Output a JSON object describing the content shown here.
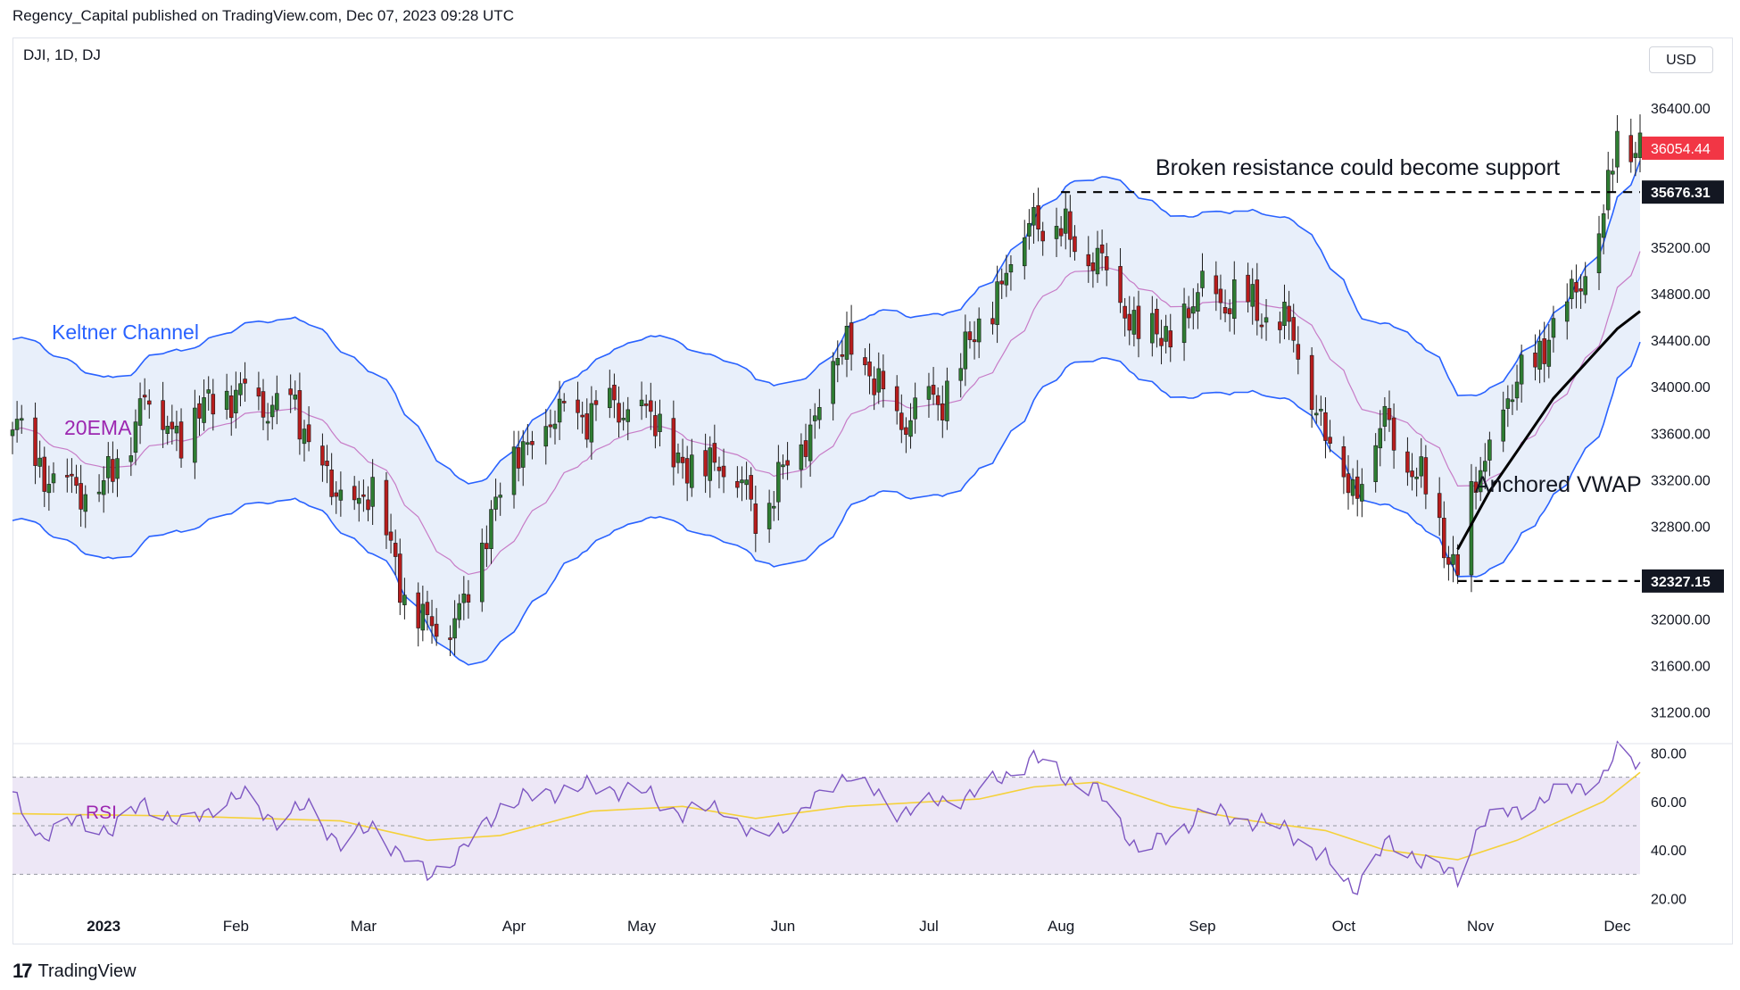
{
  "header": {
    "published": "Regency_Capital published on TradingView.com, Dec 07, 2023 09:28 UTC",
    "symbol": "DJI, 1D, DJ",
    "currency": "USD"
  },
  "footer": {
    "brand": "TradingView",
    "logo_icon": "tradingview-logo-icon"
  },
  "colors": {
    "up": "#26a69a",
    "down": "#ef5350",
    "candle_up": "#2e7d32",
    "candle_down": "#b71c1c",
    "keltner": "#2962ff",
    "keltner_fill": "#e8effa",
    "ema": "#c77cc7",
    "vwap": "#000000",
    "rsi": "#7e57c2",
    "rsi_ma": "#f5d13a",
    "rsi_band": "#ede7f6",
    "price_tag": "#f23645"
  },
  "chart_data": [
    {
      "type": "candlestick",
      "title": "DJI, 1D, DJ",
      "y_axis": {
        "ylim": [
          30950,
          36700
        ],
        "ticks": [
          31200,
          31600,
          32000,
          32400,
          32800,
          33200,
          33600,
          34000,
          34400,
          34800,
          35200,
          35600,
          36000,
          36400
        ],
        "tick_labels": [
          "31200.00",
          "31600.00",
          "32000.00",
          "",
          "32800.00",
          "33200.00",
          "33600.00",
          "34000.00",
          "34400.00",
          "34800.00",
          "35200.00",
          "",
          "",
          "36400.00"
        ]
      },
      "x_axis": {
        "labels": [
          "2023",
          "Feb",
          "Mar",
          "Apr",
          "May",
          "Jun",
          "Jul",
          "Aug",
          "Sep",
          "Oct",
          "Nov",
          "Dec"
        ],
        "label_dates": [
          "2023-01-03",
          "2023-02-01",
          "2023-03-01",
          "2023-04-03",
          "2023-05-01",
          "2023-06-01",
          "2023-07-03",
          "2023-08-01",
          "2023-09-01",
          "2023-10-02",
          "2023-11-01",
          "2023-12-01"
        ],
        "date_range": [
          "2022-12-14",
          "2023-12-06"
        ]
      },
      "price_series": [
        [
          "2022-12-14",
          33700
        ],
        [
          "2022-12-22",
          33200
        ],
        [
          "2023-01-03",
          33100
        ],
        [
          "2023-01-12",
          33900
        ],
        [
          "2023-01-20",
          33600
        ],
        [
          "2023-01-27",
          33900
        ],
        [
          "2023-02-03",
          33900
        ],
        [
          "2023-02-14",
          33800
        ],
        [
          "2023-02-23",
          33000
        ],
        [
          "2023-03-03",
          33100
        ],
        [
          "2023-03-10",
          32250
        ],
        [
          "2023-03-15",
          31900
        ],
        [
          "2023-03-23",
          32100
        ],
        [
          "2023-03-31",
          33200
        ],
        [
          "2023-04-11",
          33700
        ],
        [
          "2023-04-20",
          33800
        ],
        [
          "2023-05-01",
          33800
        ],
        [
          "2023-05-11",
          33300
        ],
        [
          "2023-05-19",
          33400
        ],
        [
          "2023-05-26",
          32900
        ],
        [
          "2023-06-05",
          33500
        ],
        [
          "2023-06-15",
          34400
        ],
        [
          "2023-06-26",
          33700
        ],
        [
          "2023-07-06",
          33900
        ],
        [
          "2023-07-14",
          34500
        ],
        [
          "2023-07-26",
          35500
        ],
        [
          "2023-08-02",
          35300
        ],
        [
          "2023-08-09",
          35100
        ],
        [
          "2023-08-18",
          34500
        ],
        [
          "2023-08-25",
          34400
        ],
        [
          "2023-09-01",
          34800
        ],
        [
          "2023-09-12",
          34700
        ],
        [
          "2023-09-20",
          34500
        ],
        [
          "2023-09-28",
          33600
        ],
        [
          "2023-10-04",
          33100
        ],
        [
          "2023-10-11",
          33700
        ],
        [
          "2023-10-20",
          33100
        ],
        [
          "2023-10-27",
          32400
        ],
        [
          "2023-11-01",
          33300
        ],
        [
          "2023-11-09",
          34000
        ],
        [
          "2023-11-20",
          34700
        ],
        [
          "2023-11-28",
          35400
        ],
        [
          "2023-12-01",
          36200
        ],
        [
          "2023-12-06",
          36054
        ]
      ],
      "indicators": {
        "keltner_channel": {
          "label": "Keltner Channel"
        },
        "ema": {
          "label": "20EMA",
          "period": 20
        },
        "anchored_vwap": {
          "label": "Anchored VWAP",
          "anchor_date": "2023-10-27",
          "series": [
            [
              "2023-10-27",
              32600
            ],
            [
              "2023-11-03",
              33100
            ],
            [
              "2023-11-10",
              33500
            ],
            [
              "2023-11-17",
              33900
            ],
            [
              "2023-11-24",
              34200
            ],
            [
              "2023-12-01",
              34500
            ],
            [
              "2023-12-06",
              34650
            ]
          ]
        }
      },
      "levels": [
        {
          "label": "35676.31",
          "value": 35676.31,
          "from": "2023-08-01",
          "style": "dashed"
        },
        {
          "label": "32327.15",
          "value": 32327.15,
          "from": "2023-10-27",
          "style": "dashed"
        }
      ],
      "last_price": {
        "label": "36054.44",
        "value": 36054.44
      },
      "annotations": [
        "Broken resistance could become support",
        "Anchored VWAP"
      ]
    },
    {
      "type": "line",
      "title": "RSI",
      "ylim": [
        18,
        82
      ],
      "ticks": [
        20,
        40,
        60,
        80
      ],
      "tick_labels": [
        "20.00",
        "40.00",
        "60.00",
        "80.00"
      ],
      "bands": [
        30,
        50,
        70
      ],
      "series": [
        {
          "name": "RSI",
          "values": [
            [
              "2022-12-14",
              62
            ],
            [
              "2022-12-20",
              46
            ],
            [
              "2022-12-28",
              52
            ],
            [
              "2023-01-05",
              48
            ],
            [
              "2023-01-12",
              60
            ],
            [
              "2023-01-20",
              50
            ],
            [
              "2023-01-27",
              58
            ],
            [
              "2023-02-03",
              62
            ],
            [
              "2023-02-10",
              52
            ],
            [
              "2023-02-17",
              58
            ],
            [
              "2023-02-24",
              42
            ],
            [
              "2023-03-03",
              50
            ],
            [
              "2023-03-09",
              38
            ],
            [
              "2023-03-15",
              30
            ],
            [
              "2023-03-22",
              38
            ],
            [
              "2023-03-31",
              58
            ],
            [
              "2023-04-11",
              64
            ],
            [
              "2023-04-20",
              66
            ],
            [
              "2023-05-01",
              64
            ],
            [
              "2023-05-10",
              55
            ],
            [
              "2023-05-19",
              58
            ],
            [
              "2023-05-26",
              44
            ],
            [
              "2023-06-05",
              55
            ],
            [
              "2023-06-15",
              72
            ],
            [
              "2023-06-26",
              56
            ],
            [
              "2023-07-06",
              60
            ],
            [
              "2023-07-14",
              64
            ],
            [
              "2023-07-26",
              78
            ],
            [
              "2023-08-02",
              70
            ],
            [
              "2023-08-09",
              64
            ],
            [
              "2023-08-18",
              40
            ],
            [
              "2023-08-25",
              45
            ],
            [
              "2023-09-01",
              56
            ],
            [
              "2023-09-12",
              52
            ],
            [
              "2023-09-20",
              48
            ],
            [
              "2023-09-28",
              36
            ],
            [
              "2023-10-04",
              24
            ],
            [
              "2023-10-11",
              42
            ],
            [
              "2023-10-20",
              36
            ],
            [
              "2023-10-27",
              28
            ],
            [
              "2023-11-01",
              52
            ],
            [
              "2023-11-09",
              56
            ],
            [
              "2023-11-20",
              65
            ],
            [
              "2023-11-28",
              70
            ],
            [
              "2023-12-01",
              80
            ],
            [
              "2023-12-06",
              76
            ]
          ]
        },
        {
          "name": "RSI MA",
          "values": [
            [
              "2022-12-14",
              55
            ],
            [
              "2023-01-20",
              54
            ],
            [
              "2023-02-24",
              52
            ],
            [
              "2023-03-15",
              44
            ],
            [
              "2023-03-31",
              46
            ],
            [
              "2023-04-20",
              56
            ],
            [
              "2023-05-10",
              58
            ],
            [
              "2023-05-26",
              53
            ],
            [
              "2023-06-15",
              58
            ],
            [
              "2023-07-14",
              61
            ],
            [
              "2023-07-26",
              66
            ],
            [
              "2023-08-09",
              68
            ],
            [
              "2023-08-25",
              58
            ],
            [
              "2023-09-12",
              52
            ],
            [
              "2023-09-28",
              48
            ],
            [
              "2023-10-11",
              40
            ],
            [
              "2023-10-27",
              36
            ],
            [
              "2023-11-09",
              44
            ],
            [
              "2023-11-28",
              60
            ],
            [
              "2023-12-06",
              72
            ]
          ]
        }
      ]
    }
  ]
}
